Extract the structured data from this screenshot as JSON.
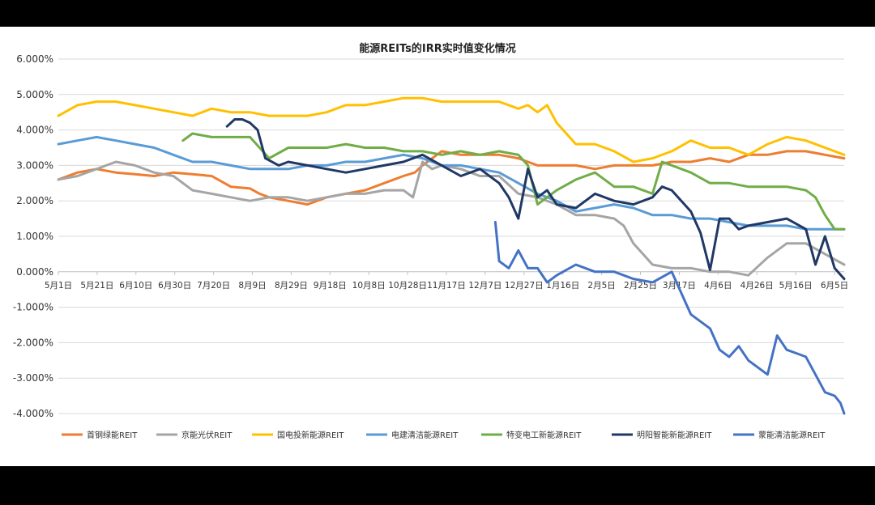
{
  "chart_data": {
    "type": "line",
    "title": "能源REITs的IRR实时值变化情况",
    "xlabel": "",
    "ylabel": "",
    "ylim": [
      -0.04,
      0.06
    ],
    "yticks": [
      "6.000%",
      "5.000%",
      "4.000%",
      "3.000%",
      "2.000%",
      "1.000%",
      "0.000%",
      "-1.000%",
      "-2.000%",
      "-3.000%",
      "-4.000%"
    ],
    "ytick_values": [
      0.06,
      0.05,
      0.04,
      0.03,
      0.02,
      0.01,
      0,
      -0.01,
      -0.02,
      -0.03,
      -0.04
    ],
    "xticks": [
      "5月1日",
      "5月21日",
      "6月10日",
      "6月30日",
      "7月20日",
      "8月9日",
      "8月29日",
      "9月18日",
      "10月8日",
      "10月28日",
      "11月17日",
      "12月7日",
      "12月27日",
      "1月16日",
      "2月5日",
      "2月25日",
      "3月17日",
      "4月6日",
      "4月26日",
      "5月16日",
      "6月5日"
    ],
    "x_range": [
      0,
      410
    ],
    "grid": true,
    "legend_position": "bottom",
    "series": [
      {
        "name": "首钢绿能REIT",
        "color": "#ED7D31",
        "x": [
          0,
          10,
          20,
          30,
          40,
          50,
          60,
          70,
          80,
          90,
          100,
          105,
          110,
          120,
          130,
          140,
          150,
          160,
          170,
          180,
          186,
          190,
          200,
          210,
          220,
          230,
          240,
          250,
          260,
          270,
          280,
          290,
          300,
          310,
          320,
          330,
          340,
          350,
          360,
          370,
          380,
          390,
          400,
          410
        ],
        "y": [
          0.026,
          0.028,
          0.029,
          0.028,
          0.0275,
          0.027,
          0.028,
          0.0275,
          0.027,
          0.024,
          0.0235,
          0.022,
          0.021,
          0.02,
          0.019,
          0.021,
          0.022,
          0.023,
          0.025,
          0.027,
          0.028,
          0.03,
          0.034,
          0.033,
          0.033,
          0.033,
          0.032,
          0.03,
          0.03,
          0.03,
          0.029,
          0.03,
          0.03,
          0.03,
          0.031,
          0.031,
          0.032,
          0.031,
          0.033,
          0.033,
          0.034,
          0.034,
          0.033,
          0.032
        ]
      },
      {
        "name": "京能光伏REIT",
        "color": "#A5A5A5",
        "x": [
          0,
          10,
          20,
          25,
          30,
          40,
          50,
          60,
          70,
          80,
          90,
          100,
          110,
          120,
          130,
          140,
          150,
          160,
          170,
          180,
          185,
          190,
          195,
          200,
          210,
          220,
          230,
          240,
          250,
          260,
          270,
          280,
          290,
          295,
          300,
          310,
          320,
          330,
          340,
          350,
          360,
          370,
          380,
          390,
          400,
          410
        ],
        "y": [
          0.026,
          0.027,
          0.029,
          0.03,
          0.031,
          0.03,
          0.028,
          0.027,
          0.023,
          0.022,
          0.021,
          0.02,
          0.021,
          0.021,
          0.02,
          0.021,
          0.022,
          0.022,
          0.023,
          0.023,
          0.021,
          0.031,
          0.029,
          0.03,
          0.029,
          0.027,
          0.027,
          0.022,
          0.021,
          0.019,
          0.016,
          0.016,
          0.015,
          0.013,
          0.008,
          0.002,
          0.001,
          0.001,
          0,
          0,
          -0.001,
          0.004,
          0.008,
          0.008,
          0.005,
          0.002
        ]
      },
      {
        "name": "国电投新能源REIT",
        "color": "#FFC000",
        "x": [
          0,
          10,
          20,
          30,
          40,
          50,
          60,
          70,
          80,
          90,
          100,
          110,
          120,
          130,
          140,
          150,
          160,
          170,
          180,
          190,
          200,
          210,
          220,
          230,
          240,
          245,
          250,
          255,
          260,
          270,
          280,
          290,
          300,
          310,
          320,
          330,
          340,
          350,
          360,
          370,
          380,
          390,
          400,
          410
        ],
        "y": [
          0.044,
          0.047,
          0.048,
          0.048,
          0.047,
          0.046,
          0.045,
          0.044,
          0.046,
          0.045,
          0.045,
          0.044,
          0.044,
          0.044,
          0.045,
          0.047,
          0.047,
          0.048,
          0.049,
          0.049,
          0.048,
          0.048,
          0.048,
          0.048,
          0.046,
          0.047,
          0.045,
          0.047,
          0.042,
          0.036,
          0.036,
          0.034,
          0.031,
          0.032,
          0.034,
          0.037,
          0.035,
          0.035,
          0.033,
          0.036,
          0.038,
          0.037,
          0.035,
          0.033
        ]
      },
      {
        "name": "电建清洁能源REIT",
        "color": "#5B9BD5",
        "x": [
          0,
          10,
          20,
          30,
          40,
          50,
          60,
          70,
          80,
          90,
          100,
          110,
          120,
          130,
          140,
          150,
          160,
          170,
          180,
          190,
          200,
          210,
          220,
          230,
          240,
          250,
          260,
          270,
          280,
          290,
          300,
          310,
          320,
          330,
          340,
          350,
          360,
          370,
          380,
          390,
          400,
          410
        ],
        "y": [
          0.036,
          0.037,
          0.038,
          0.037,
          0.036,
          0.035,
          0.033,
          0.031,
          0.031,
          0.03,
          0.029,
          0.029,
          0.029,
          0.03,
          0.03,
          0.031,
          0.031,
          0.032,
          0.033,
          0.032,
          0.03,
          0.03,
          0.029,
          0.028,
          0.025,
          0.022,
          0.02,
          0.017,
          0.018,
          0.019,
          0.018,
          0.016,
          0.016,
          0.015,
          0.015,
          0.014,
          0.013,
          0.013,
          0.013,
          0.012,
          0.012,
          0.012
        ]
      },
      {
        "name": "特变电工新能源REIT",
        "color": "#70AD47",
        "x": [
          65,
          70,
          80,
          90,
          100,
          105,
          110,
          120,
          130,
          140,
          150,
          160,
          170,
          180,
          190,
          200,
          210,
          220,
          230,
          240,
          245,
          250,
          260,
          270,
          280,
          290,
          300,
          310,
          315,
          320,
          330,
          340,
          350,
          360,
          370,
          380,
          390,
          395,
          400,
          405,
          410
        ],
        "y": [
          0.037,
          0.039,
          0.038,
          0.038,
          0.038,
          0.035,
          0.032,
          0.035,
          0.035,
          0.035,
          0.036,
          0.035,
          0.035,
          0.034,
          0.034,
          0.033,
          0.034,
          0.033,
          0.034,
          0.033,
          0.03,
          0.019,
          0.023,
          0.026,
          0.028,
          0.024,
          0.024,
          0.022,
          0.031,
          0.03,
          0.028,
          0.025,
          0.025,
          0.024,
          0.024,
          0.024,
          0.023,
          0.021,
          0.016,
          0.012,
          0.012
        ]
      },
      {
        "name": "明阳智能新能源REIT",
        "color": "#203864",
        "x": [
          88,
          92,
          96,
          100,
          104,
          108,
          115,
          120,
          130,
          140,
          150,
          160,
          170,
          180,
          190,
          200,
          210,
          220,
          230,
          235,
          240,
          245,
          250,
          255,
          260,
          270,
          280,
          290,
          300,
          310,
          315,
          320,
          330,
          335,
          340,
          345,
          350,
          355,
          360,
          370,
          380,
          390,
          395,
          400,
          405,
          410
        ],
        "y": [
          0.041,
          0.043,
          0.043,
          0.042,
          0.04,
          0.032,
          0.03,
          0.031,
          0.03,
          0.029,
          0.028,
          0.029,
          0.03,
          0.031,
          0.033,
          0.03,
          0.027,
          0.029,
          0.025,
          0.021,
          0.015,
          0.029,
          0.021,
          0.023,
          0.019,
          0.018,
          0.022,
          0.02,
          0.019,
          0.021,
          0.024,
          0.023,
          0.017,
          0.011,
          0.0005,
          0.015,
          0.015,
          0.012,
          0.013,
          0.014,
          0.015,
          0.012,
          0.002,
          0.01,
          0.001,
          -0.002
        ]
      },
      {
        "name": "蒙能清洁能源REIT",
        "color": "#4472C4",
        "x": [
          228,
          230,
          235,
          240,
          245,
          250,
          255,
          260,
          270,
          280,
          290,
          300,
          310,
          320,
          330,
          340,
          345,
          350,
          355,
          360,
          365,
          370,
          375,
          380,
          385,
          390,
          395,
          400,
          405,
          408,
          410
        ],
        "y": [
          0.014,
          0.003,
          0.001,
          0.006,
          0.001,
          0.001,
          -0.003,
          -0.001,
          0.002,
          0,
          0,
          -0.002,
          -0.003,
          0,
          -0.012,
          -0.016,
          -0.022,
          -0.024,
          -0.021,
          -0.025,
          -0.027,
          -0.029,
          -0.018,
          -0.022,
          -0.023,
          -0.024,
          -0.029,
          -0.034,
          -0.035,
          -0.037,
          -0.04
        ]
      }
    ]
  }
}
